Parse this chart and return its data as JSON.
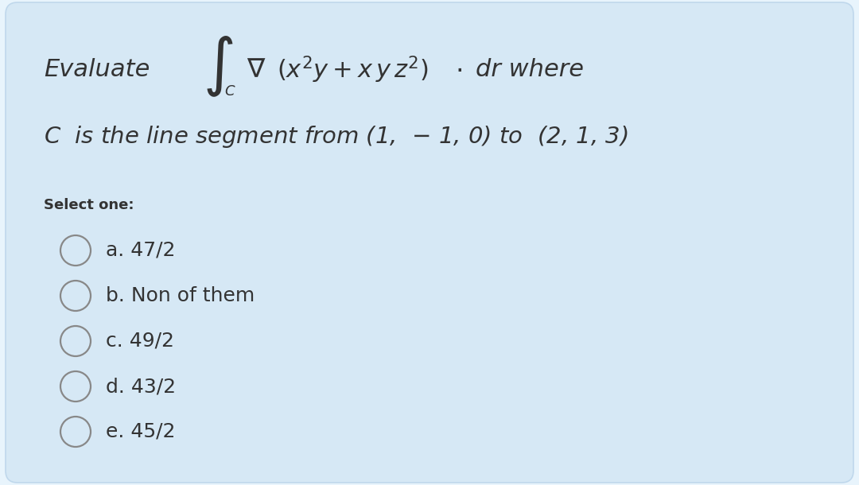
{
  "bg_color": "#d6e8f5",
  "outer_bg": "#e8f4fc",
  "text_color": "#333333",
  "circle_edge_color": "#888888",
  "select_label": "Select one:",
  "options": [
    "a. 47/2",
    "b. Non of them",
    "c. 49/2",
    "d. 43/2",
    "e. 45/2"
  ],
  "fig_width": 10.8,
  "fig_height": 6.1,
  "dpi": 100
}
